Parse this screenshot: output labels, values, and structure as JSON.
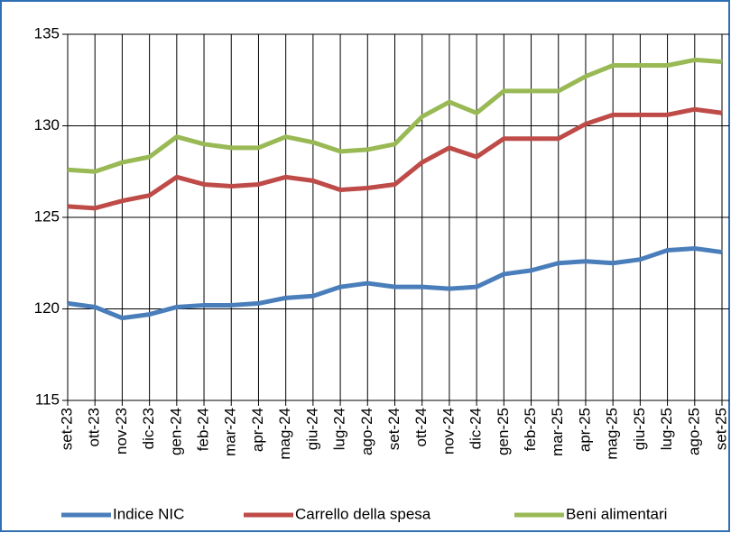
{
  "chart_data": {
    "type": "line",
    "categories": [
      "set-23",
      "ott-23",
      "nov-23",
      "dic-23",
      "gen-24",
      "feb-24",
      "mar-24",
      "apr-24",
      "mag-24",
      "giu-24",
      "lug-24",
      "ago-24",
      "set-24",
      "ott-24",
      "nov-24",
      "dic-24",
      "gen-25",
      "feb-25",
      "mar-25",
      "apr-25",
      "mag-25",
      "giu-25",
      "lug-25",
      "ago-25",
      "set-25"
    ],
    "series": [
      {
        "name": "Indice NIC",
        "color": "#4a7ebb",
        "values": [
          120.3,
          120.1,
          119.5,
          119.7,
          120.1,
          120.2,
          120.2,
          120.3,
          120.6,
          120.7,
          121.2,
          121.4,
          121.2,
          121.2,
          121.1,
          121.2,
          121.9,
          122.1,
          122.5,
          122.6,
          122.5,
          122.7,
          123.2,
          123.3,
          123.1
        ]
      },
      {
        "name": "Carrello della spesa",
        "color": "#be4b48",
        "values": [
          125.6,
          125.5,
          125.9,
          126.2,
          127.2,
          126.8,
          126.7,
          126.8,
          127.2,
          127.0,
          126.5,
          126.6,
          126.8,
          128.0,
          128.8,
          128.3,
          129.3,
          129.3,
          129.3,
          130.1,
          130.6,
          130.6,
          130.6,
          130.9,
          130.7
        ]
      },
      {
        "name": "Beni alimentari",
        "color": "#98b954",
        "values": [
          127.6,
          127.5,
          128.0,
          128.3,
          129.4,
          129.0,
          128.8,
          128.8,
          129.4,
          129.1,
          128.6,
          128.7,
          129.0,
          130.5,
          131.3,
          130.7,
          131.9,
          131.9,
          131.9,
          132.7,
          133.3,
          133.3,
          133.3,
          133.6,
          133.5
        ]
      }
    ],
    "ylim": [
      115,
      135
    ],
    "yticks": [
      115,
      120,
      125,
      130,
      135
    ],
    "grid": true,
    "legend": "bottom"
  }
}
